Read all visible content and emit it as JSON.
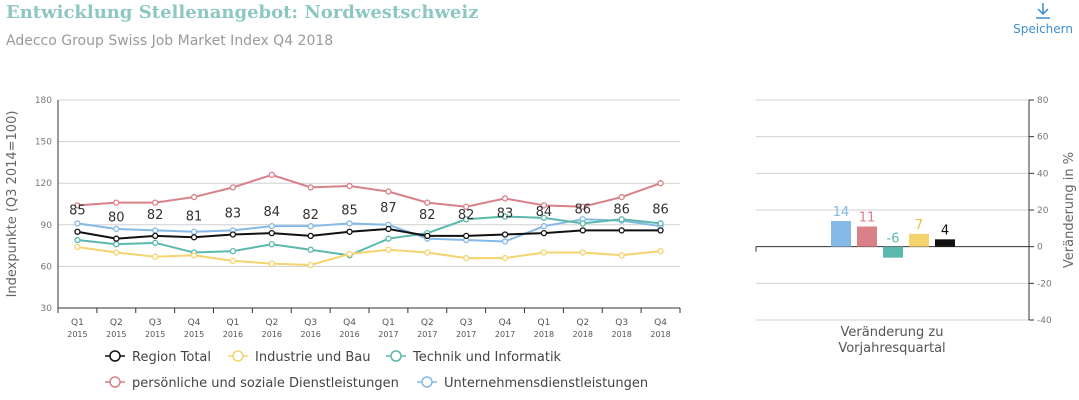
{
  "header": {
    "title": "Entwicklung Stellenangebot: Nordwestschweiz",
    "subtitle": "Adecco Group Swiss Job Market Index Q4 2018",
    "save_label": "Speichern",
    "save_icon": "download-icon"
  },
  "chart_data": [
    {
      "type": "line",
      "ylabel": "Indexpunkte (Q3 2014=100)",
      "ylim": [
        30,
        180
      ],
      "yticks": [
        30,
        60,
        90,
        120,
        150,
        180
      ],
      "grid": true,
      "legend_position": "bottom",
      "categories": [
        [
          "Q1",
          "2015"
        ],
        [
          "Q2",
          "2015"
        ],
        [
          "Q3",
          "2015"
        ],
        [
          "Q4",
          "2015"
        ],
        [
          "Q1",
          "2016"
        ],
        [
          "Q2",
          "2016"
        ],
        [
          "Q3",
          "2016"
        ],
        [
          "Q4",
          "2016"
        ],
        [
          "Q1",
          "2017"
        ],
        [
          "Q2",
          "2017"
        ],
        [
          "Q3",
          "2017"
        ],
        [
          "Q4",
          "2017"
        ],
        [
          "Q1",
          "2018"
        ],
        [
          "Q2",
          "2018"
        ],
        [
          "Q3",
          "2018"
        ],
        [
          "Q4",
          "2018"
        ]
      ],
      "series": [
        {
          "name": "Region Total",
          "color": "#111111",
          "labels": true,
          "values": [
            85,
            80,
            82,
            81,
            83,
            84,
            82,
            85,
            87,
            82,
            82,
            83,
            84,
            86,
            86,
            86
          ]
        },
        {
          "name": "Industrie und Bau",
          "color": "#f5d46e",
          "values": [
            74,
            70,
            67,
            68,
            64,
            62,
            61,
            69,
            72,
            70,
            66,
            66,
            70,
            70,
            68,
            71
          ]
        },
        {
          "name": "Technik und Informatik",
          "color": "#5bb8ad",
          "values": [
            79,
            76,
            77,
            70,
            71,
            76,
            72,
            68,
            80,
            84,
            94,
            96,
            95,
            91,
            94,
            91
          ]
        },
        {
          "name": "persönliche und soziale Dienstleistungen",
          "color": "#d98088",
          "values": [
            104,
            106,
            106,
            110,
            117,
            126,
            117,
            118,
            114,
            106,
            103,
            109,
            104,
            103,
            110,
            120
          ]
        },
        {
          "name": "Unternehmensdienstleistungen",
          "color": "#85b9e6",
          "values": [
            91,
            87,
            86,
            85,
            86,
            89,
            89,
            91,
            90,
            80,
            79,
            78,
            89,
            94,
            93,
            89
          ]
        }
      ]
    },
    {
      "type": "bar",
      "xlabel": "Veränderung zu Vorjahresquartal",
      "ylabel": "Veränderung in %",
      "ylim": [
        -40,
        80
      ],
      "yticks": [
        -40,
        -20,
        0,
        20,
        40,
        60,
        80
      ],
      "grid": true,
      "bars": [
        {
          "series": "Unternehmensdienstleistungen",
          "value": 14,
          "color": "#85b9e6"
        },
        {
          "series": "persönliche und soziale Dienstleistungen",
          "value": 11,
          "color": "#d98088"
        },
        {
          "series": "Technik und Informatik",
          "value": -6,
          "color": "#5bb8ad"
        },
        {
          "series": "Industrie und Bau",
          "value": 7,
          "color": "#f5d46e"
        },
        {
          "series": "Region Total",
          "value": 4,
          "color": "#111111"
        }
      ]
    }
  ]
}
